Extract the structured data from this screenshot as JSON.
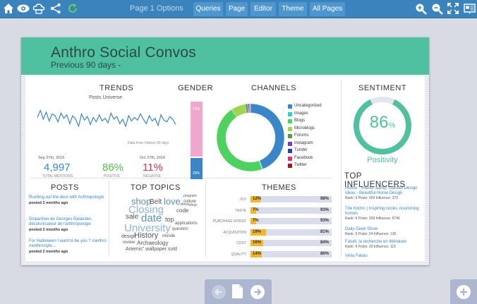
{
  "toolbar": {
    "page_title": "Page 1 Options",
    "tabs": [
      "Queries",
      "Page",
      "Editor",
      "Theme",
      "All Pages"
    ]
  },
  "dashboard": {
    "title": "Anthro Social Convos",
    "subtitle": "Previous 90 days -",
    "header_color": "#4fc0a0"
  },
  "trends": {
    "heading": "TRENDS",
    "series_label": "Posts Universe",
    "note": "Data from Visitors 90 days",
    "start_date": "Sep 27th, 2016",
    "end_date": "Oct 27th, 2016",
    "total_value": "4,997",
    "total_label": "TOTAL MENTIONS",
    "positive_value": "86%",
    "positive_label": "POSITIVE",
    "negative_value": "11%",
    "negative_label": "NEGATIVE",
    "chart_data": {
      "type": "line",
      "x": [
        1,
        2,
        3,
        4,
        5,
        6,
        7,
        8,
        9,
        10,
        11,
        12,
        13,
        14,
        15,
        16,
        17,
        18,
        19,
        20,
        21,
        22,
        23,
        24,
        25,
        26,
        27,
        28,
        29,
        30,
        31,
        32,
        33,
        34,
        35,
        36,
        37,
        38,
        39,
        40,
        41,
        42,
        43,
        44,
        45,
        46,
        47,
        48
      ],
      "values": [
        22,
        30,
        20,
        28,
        18,
        26,
        24,
        17,
        27,
        21,
        25,
        15,
        24,
        20,
        12,
        26,
        19,
        23,
        14,
        22,
        17,
        25,
        18,
        21,
        16,
        27,
        20,
        23,
        15,
        20,
        12,
        24,
        18,
        22,
        19,
        26,
        20,
        15,
        24,
        18,
        21,
        13,
        25,
        19,
        17,
        23,
        20,
        14
      ],
      "ylim": [
        0,
        40
      ]
    }
  },
  "gender": {
    "heading": "GENDER",
    "female_pct": "71%",
    "male_pct": "29%",
    "female_value": 71,
    "male_value": 29,
    "female_color": "#f0a8cf",
    "male_color": "#3b86c8"
  },
  "channels": {
    "heading": "CHANNELS",
    "legend": [
      {
        "label": "Uncategorized",
        "color": "#3b86c8",
        "value": 44
      },
      {
        "label": "Images",
        "color": "#2fcfd0",
        "value": 0.5
      },
      {
        "label": "Blogs",
        "color": "#4fd160",
        "value": 46
      },
      {
        "label": "Microblogs",
        "color": "#9ed654",
        "value": 7
      },
      {
        "label": "Forums",
        "color": "#5a9c3a",
        "value": 1
      },
      {
        "label": "Instagram",
        "color": "#7a3dbf",
        "value": 0.5
      },
      {
        "label": "Tumblr",
        "color": "#2a3fb0",
        "value": 0.5
      },
      {
        "label": "Facebook",
        "color": "#e0306a",
        "value": 0.3
      },
      {
        "label": "Twitter",
        "color": "#9c1c1c",
        "value": 0.2
      }
    ]
  },
  "sentiment": {
    "heading": "SENTIMENT",
    "value": "86",
    "unit": "%",
    "fraction": 0.86,
    "label": "Positivity",
    "color": "#4fc0a0"
  },
  "posts": {
    "heading": "POSTS",
    "items": [
      {
        "title": "Rushing out the door with Anthropologie",
        "date": "posted 2 months ago"
      },
      {
        "title": "Disparition de Georges Balandier, décolonisateur de l'anthropologie",
        "date": "posted 2 months ago"
      },
      {
        "title": "For Halloween I want to be you ? #anthro #anthrostyle...",
        "date": "posted 2 months ago"
      }
    ]
  },
  "topics": {
    "heading": "TOP TOPICS",
    "words": [
      {
        "text": "shop",
        "size": 13,
        "color": "#5b8fc0"
      },
      {
        "text": "Belt",
        "size": 10,
        "color": "#555"
      },
      {
        "text": "love",
        "size": 13,
        "color": "#5b8fc0"
      },
      {
        "text": "program",
        "size": 5,
        "color": "#555"
      },
      {
        "text": "culture",
        "size": 6,
        "color": "#555"
      },
      {
        "text": "shop",
        "size": 5,
        "color": "#555"
      },
      {
        "text": "Closing",
        "size": 15,
        "color": "#8fb3d9"
      },
      {
        "text": "dress",
        "size": 5,
        "color": "#555"
      },
      {
        "text": "sale",
        "size": 10,
        "color": "#555"
      },
      {
        "text": "date",
        "size": 15,
        "color": "#5b8fc0"
      },
      {
        "text": "code",
        "size": 8,
        "color": "#555"
      },
      {
        "text": "top",
        "size": 9,
        "color": "#555"
      },
      {
        "text": "University",
        "size": 15,
        "color": "#8fb3d9"
      },
      {
        "text": "applications",
        "size": 6,
        "color": "#555"
      },
      {
        "text": "question",
        "size": 6,
        "color": "#555"
      },
      {
        "text": "design",
        "size": 7,
        "color": "#555"
      },
      {
        "text": "History",
        "size": 11,
        "color": "#555"
      },
      {
        "text": "monde",
        "size": 6,
        "color": "#555"
      },
      {
        "text": "review",
        "size": 6,
        "color": "#555"
      },
      {
        "text": "Archaeology",
        "size": 8,
        "color": "#555"
      },
      {
        "text": "Artemis\" wallpaper sold",
        "size": 7,
        "color": "#555"
      }
    ]
  },
  "themes": {
    "heading": "THEMES",
    "chart_data": {
      "type": "bar",
      "categories": [
        "JOY",
        "TASTE",
        "PURCHASE INTENT",
        "ACQUISITION",
        "COST",
        "QUALITY"
      ],
      "values": [
        12,
        7,
        7,
        19,
        16,
        14
      ],
      "positive": [
        88,
        93,
        93,
        81,
        84,
        86
      ],
      "value_labels": [
        "12%",
        "7%",
        "7%",
        "19%",
        "16%",
        "14%"
      ],
      "positive_labels": [
        "88%",
        "93%",
        "93%",
        "81%",
        "84%",
        "86%"
      ],
      "xlim": [
        0,
        100
      ]
    }
  },
  "influencers": {
    "heading": "TOP INFLUENCERS",
    "items": [
      {
        "name": "House - Interior &amp; Garden Design Ideas - Beautiful Home Design",
        "metrics": "Rank: 9  Posts: 269  Influence: 379"
      },
      {
        "name": "The Kitchn | Inspiring cooks, nourishing homes",
        "metrics": "Rank: 9  Posts: 269  Influence: 5746"
      },
      {
        "name": "Daily Geek Show",
        "metrics": "Rank: 9  Posts: 24  Influence: 136"
      },
      {
        "name": "Fatulli, la recherche en littérature",
        "metrics": "Rank: 9  Posts: 20  Influence: 115"
      },
      {
        "name": "Vélia Fatulu",
        "metrics": ""
      }
    ]
  }
}
